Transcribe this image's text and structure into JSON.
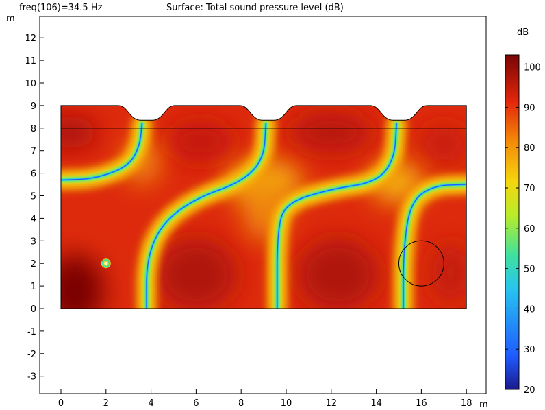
{
  "header": {
    "freq_label": "freq(106)=34.5 Hz",
    "title": "Surface: Total sound pressure level (dB)"
  },
  "chart_data": {
    "type": "heatmap",
    "title": "Surface: Total sound pressure level (dB)",
    "parameter": "freq(106)=34.5 Hz",
    "xlabel": "m",
    "ylabel": "m",
    "xlim": [
      -1,
      19
    ],
    "ylim": [
      -4,
      13
    ],
    "xticks": [
      0,
      2,
      4,
      6,
      8,
      10,
      12,
      14,
      16,
      18
    ],
    "yticks": [
      -3,
      -2,
      -1,
      0,
      1,
      2,
      3,
      4,
      5,
      6,
      7,
      8,
      9,
      10,
      11,
      12
    ],
    "colorbar": {
      "label": "dB",
      "min": 20,
      "max": 103,
      "ticks": [
        20,
        30,
        40,
        50,
        60,
        70,
        80,
        90,
        100
      ],
      "colormap": "rainbow",
      "colors": [
        "#1a1a8c",
        "#1f5bff",
        "#27c4f0",
        "#3fe0a0",
        "#b8ec28",
        "#f5d60e",
        "#f48b08",
        "#e3260b",
        "#7a0505"
      ]
    },
    "geometry": {
      "domain_x": [
        0,
        18
      ],
      "domain_y": [
        0,
        9
      ],
      "line_y": 8,
      "circle_center": [
        16,
        2
      ],
      "circle_radius": 1,
      "source_point": [
        2,
        2
      ],
      "top_notches_x": [
        4,
        9.4,
        15.2
      ]
    },
    "nodal_lines_description_points": [
      {
        "series": "left",
        "x": [
          0,
          1.5,
          3,
          3.5,
          3.6
        ],
        "y": [
          5.7,
          5.75,
          6.3,
          7.2,
          8.2
        ]
      },
      {
        "series": "first",
        "x": [
          3.8,
          3.8,
          4.5,
          6,
          8,
          9,
          9.1
        ],
        "y": [
          0,
          2.2,
          3.8,
          4.9,
          5.6,
          6.6,
          8.2
        ]
      },
      {
        "series": "second",
        "x": [
          9.6,
          9.6,
          10,
          12,
          14,
          14.8,
          14.9
        ],
        "y": [
          0,
          3.5,
          4.7,
          5.3,
          5.6,
          6.6,
          8.2
        ]
      },
      {
        "series": "third",
        "x": [
          15.2,
          15.2,
          15.5,
          16.5,
          18
        ],
        "y": [
          0,
          2.5,
          4.7,
          5.45,
          5.5
        ]
      }
    ]
  }
}
